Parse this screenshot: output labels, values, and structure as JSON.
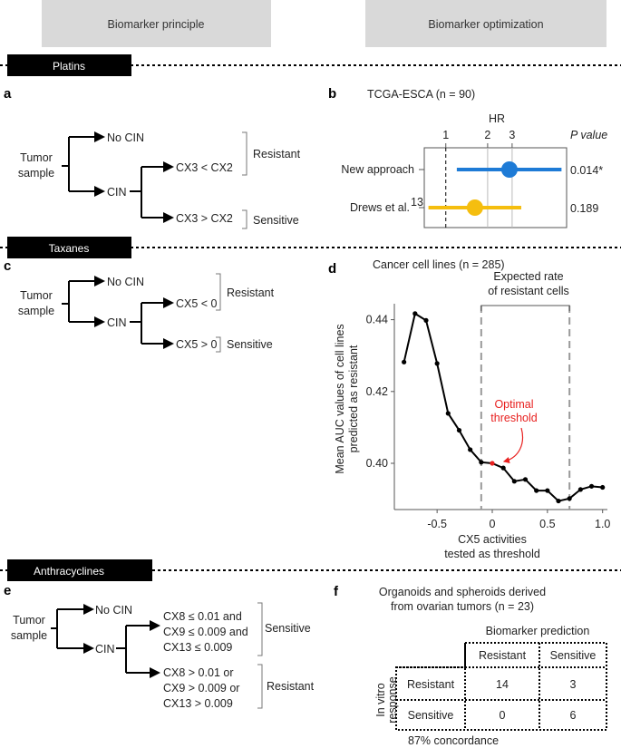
{
  "headers": {
    "left": "Biomarker principle",
    "right": "Biomarker optimization"
  },
  "sections": {
    "platins": "Platins",
    "taxanes": "Taxanes",
    "anthracyclines": "Anthracyclines"
  },
  "panel_a": {
    "label": "a",
    "root": [
      "Tumor",
      "sample"
    ],
    "no_cin": "No CIN",
    "cin": "CIN",
    "branch_top": "CX3 < CX2",
    "branch_bottom": "CX3 > CX2",
    "resistant": "Resistant",
    "sensitive": "Sensitive"
  },
  "panel_c": {
    "label": "c",
    "root": [
      "Tumor",
      "sample"
    ],
    "no_cin": "No CIN",
    "cin": "CIN",
    "branch_top": "CX5 < 0",
    "branch_bottom": "CX5 > 0",
    "resistant": "Resistant",
    "sensitive": "Sensitive"
  },
  "panel_e": {
    "label": "e",
    "root": [
      "Tumor",
      "sample"
    ],
    "no_cin": "No CIN",
    "cin": "CIN",
    "branch_top": [
      "CX8 ≤ 0.01 and",
      "CX9 ≤ 0.009 and",
      "CX13 ≤ 0.009"
    ],
    "branch_bottom": [
      "CX8 > 0.01 or",
      "CX9 > 0.009 or",
      "CX13 > 0.009"
    ],
    "sensitive": "Sensitive",
    "resistant": "Resistant"
  },
  "chart_data": [
    {
      "panel": "b",
      "type": "forest",
      "title": "TCGA-ESCA (n = 90)",
      "xlabel": "HR",
      "x_scale": "log",
      "xticks": [
        "1",
        "2",
        "3"
      ],
      "xlim": [
        0.7,
        7.4
      ],
      "reference_line": 1,
      "pvalue_header": "P value",
      "rows": [
        {
          "name": "New approach",
          "hr": 2.87,
          "ci": [
            1.2,
            6.8
          ],
          "p": "0.014*",
          "color": "#1e7bd6"
        },
        {
          "name": "Drews et al.",
          "superscript": "13",
          "hr": 1.62,
          "ci": [
            0.75,
            3.49
          ],
          "p": "0.189",
          "color": "#f5be0f"
        }
      ]
    },
    {
      "panel": "d",
      "type": "line",
      "title": "Cancer cell lines (n = 285)",
      "xlabel": [
        "CX5 activities",
        "tested as threshold"
      ],
      "ylabel": [
        "Mean AUC values of cell lines",
        "predicted as resistant"
      ],
      "xticks": [
        "-0.5",
        "0",
        "0.5",
        "1.0"
      ],
      "yticks": [
        "0.40",
        "0.42",
        "0.44"
      ],
      "xlim": [
        -0.88,
        1.08
      ],
      "ylim": [
        0.3875,
        0.4455
      ],
      "x": [
        -0.8,
        -0.7,
        -0.6,
        -0.5,
        -0.4,
        -0.3,
        -0.2,
        -0.1,
        0,
        0.1,
        0.2,
        0.3,
        0.4,
        0.5,
        0.6,
        0.7,
        0.8,
        0.9,
        1.0
      ],
      "y": [
        0.4282,
        0.4417,
        0.4398,
        0.4278,
        0.4139,
        0.4092,
        0.4038,
        0.4003,
        0.4,
        0.3987,
        0.395,
        0.3955,
        0.3924,
        0.3924,
        0.3895,
        0.3902,
        0.3927,
        0.3936,
        0.3933
      ],
      "highlight": {
        "x": 0,
        "y": 0.4,
        "label": [
          "Optimal",
          "threshold"
        ],
        "color": "#e8201f"
      },
      "range": {
        "from": -0.1,
        "to": 0.7,
        "label": [
          "Expected rate",
          "of resistant cells"
        ]
      }
    },
    {
      "panel": "f",
      "type": "table",
      "title": [
        "Organoids and spheroids derived",
        "from ovarian tumors (n = 23)"
      ],
      "col_header": "Biomarker prediction",
      "row_header": [
        "In vitro",
        "response"
      ],
      "columns": [
        "Resistant",
        "Sensitive"
      ],
      "rows": [
        {
          "label": "Resistant",
          "values": [
            "14",
            "3"
          ]
        },
        {
          "label": "Sensitive",
          "values": [
            "0",
            "6"
          ]
        }
      ],
      "footer": "87% concordance"
    }
  ],
  "panel_labels": {
    "b": "b",
    "d": "d",
    "f": "f"
  }
}
